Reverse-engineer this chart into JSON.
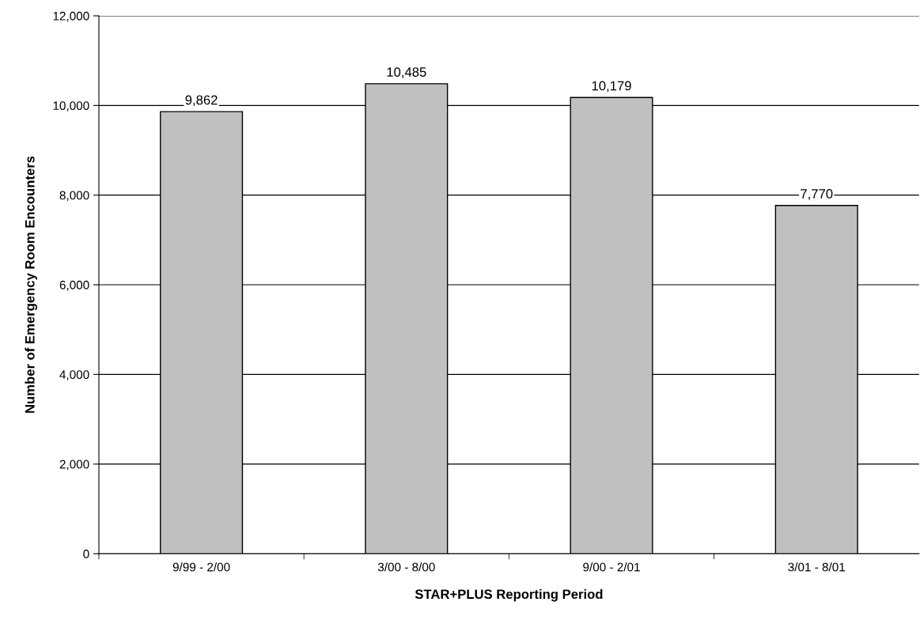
{
  "chart_data": {
    "type": "bar",
    "xlabel": "STAR+PLUS Reporting Period",
    "ylabel": "Number of Emergency Room Encounters",
    "categories": [
      "9/99 - 2/00",
      "3/00 - 8/00",
      "9/00 - 2/01",
      "3/01 - 8/01"
    ],
    "values": [
      9862,
      10485,
      10179,
      7770
    ],
    "value_labels": [
      "9,862",
      "10,485",
      "10,179",
      "7,770"
    ],
    "color": "#c0c0c0",
    "ylim": [
      0,
      12000
    ],
    "yticks": [
      {
        "value": 0,
        "label": "0"
      },
      {
        "value": 2000,
        "label": "2,000"
      },
      {
        "value": 4000,
        "label": "4,000"
      },
      {
        "value": 6000,
        "label": "6,000"
      },
      {
        "value": 8000,
        "label": "8,000"
      },
      {
        "value": 10000,
        "label": "10,000"
      },
      {
        "value": 12000,
        "label": "12,000"
      }
    ],
    "grid": "y"
  }
}
